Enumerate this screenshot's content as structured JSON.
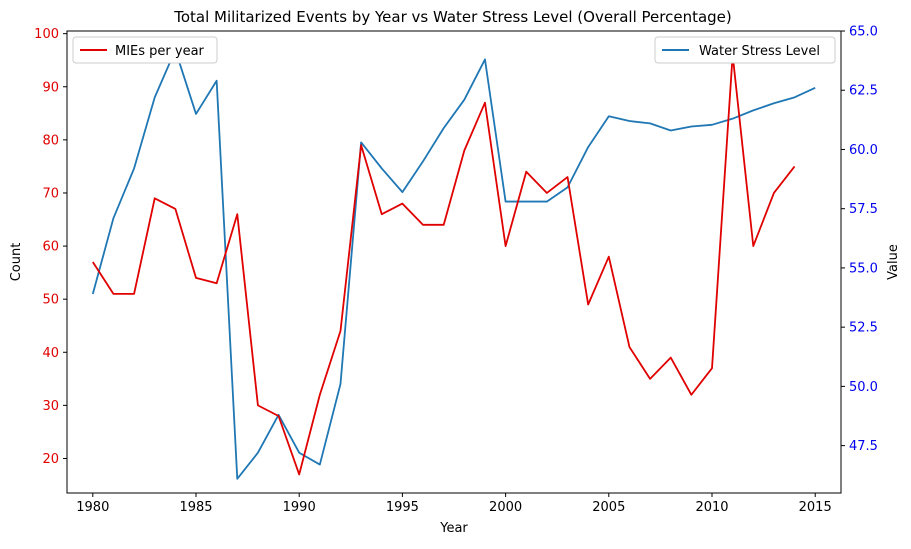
{
  "chart_data": {
    "type": "line",
    "title": "Total Militarized Events by Year vs Water Stress Level (Overall Percentage)",
    "xlabel": "Year",
    "ylabel_left": "Count",
    "ylabel_right": "Value",
    "xlim": [
      1978.75,
      2016.25
    ],
    "ylim_left": [
      13.5,
      100.5
    ],
    "ylim_right": [
      45.5,
      65.0
    ],
    "xticks": [
      1980,
      1985,
      1990,
      1995,
      2000,
      2005,
      2010,
      2015
    ],
    "xtick_labels": [
      "1980",
      "1985",
      "1990",
      "1995",
      "2000",
      "2005",
      "2010",
      "2015"
    ],
    "yticks_left": [
      20,
      30,
      40,
      50,
      60,
      70,
      80,
      90,
      100
    ],
    "ytick_labels_left": [
      "20",
      "30",
      "40",
      "50",
      "60",
      "70",
      "80",
      "90",
      "100"
    ],
    "yticks_right": [
      47.5,
      50.0,
      52.5,
      55.0,
      57.5,
      60.0,
      62.5,
      65.0
    ],
    "ytick_labels_right": [
      "47.5",
      "50.0",
      "52.5",
      "55.0",
      "57.5",
      "60.0",
      "62.5",
      "65.0"
    ],
    "grid": false,
    "colors": {
      "mies": "#e00000",
      "water": "#1f77b4",
      "left_axis_ticks": "#e00000",
      "right_axis_ticks": "#0000ee"
    },
    "series": [
      {
        "name": "MIEs per year",
        "axis": "left",
        "x": [
          1980,
          1981,
          1982,
          1983,
          1984,
          1985,
          1986,
          1987,
          1988,
          1989,
          1990,
          1991,
          1992,
          1993,
          1994,
          1995,
          1996,
          1997,
          1998,
          1999,
          2000,
          2001,
          2002,
          2003,
          2004,
          2005,
          2006,
          2007,
          2008,
          2009,
          2010,
          2011,
          2012,
          2013,
          2014
        ],
        "values": [
          57,
          51,
          51,
          69,
          67,
          54,
          53,
          66,
          30,
          28,
          17,
          32,
          44,
          79,
          66,
          68,
          64,
          64,
          78,
          87,
          60,
          74,
          70,
          73,
          49,
          58,
          41,
          35,
          39,
          32,
          37,
          96,
          60,
          70,
          75
        ]
      },
      {
        "name": "Water Stress Level",
        "axis": "right",
        "x": [
          1980,
          1981,
          1982,
          1983,
          1984,
          1985,
          1986,
          1987,
          1988,
          1989,
          1990,
          1991,
          1992,
          1993,
          1994,
          1995,
          1996,
          1997,
          1998,
          1999,
          2000,
          2001,
          2002,
          2003,
          2004,
          2005,
          2006,
          2007,
          2008,
          2009,
          2010,
          2011,
          2012,
          2013,
          2014,
          2015
        ],
        "values": [
          53.9,
          57.1,
          59.2,
          62.2,
          64.2,
          61.5,
          62.9,
          46.1,
          47.2,
          48.8,
          47.2,
          46.7,
          50.1,
          60.3,
          59.2,
          58.2,
          59.5,
          60.9,
          62.1,
          63.8,
          57.8,
          57.8,
          57.8,
          58.4,
          60.1,
          61.4,
          61.2,
          61.1,
          60.8,
          60.97,
          61.04,
          61.3,
          61.65,
          61.95,
          62.2,
          62.6
        ]
      }
    ],
    "legends": [
      {
        "placement": "upper-left",
        "entries": [
          "MIEs per year"
        ]
      },
      {
        "placement": "upper-right",
        "entries": [
          "Water Stress Level"
        ]
      }
    ]
  }
}
